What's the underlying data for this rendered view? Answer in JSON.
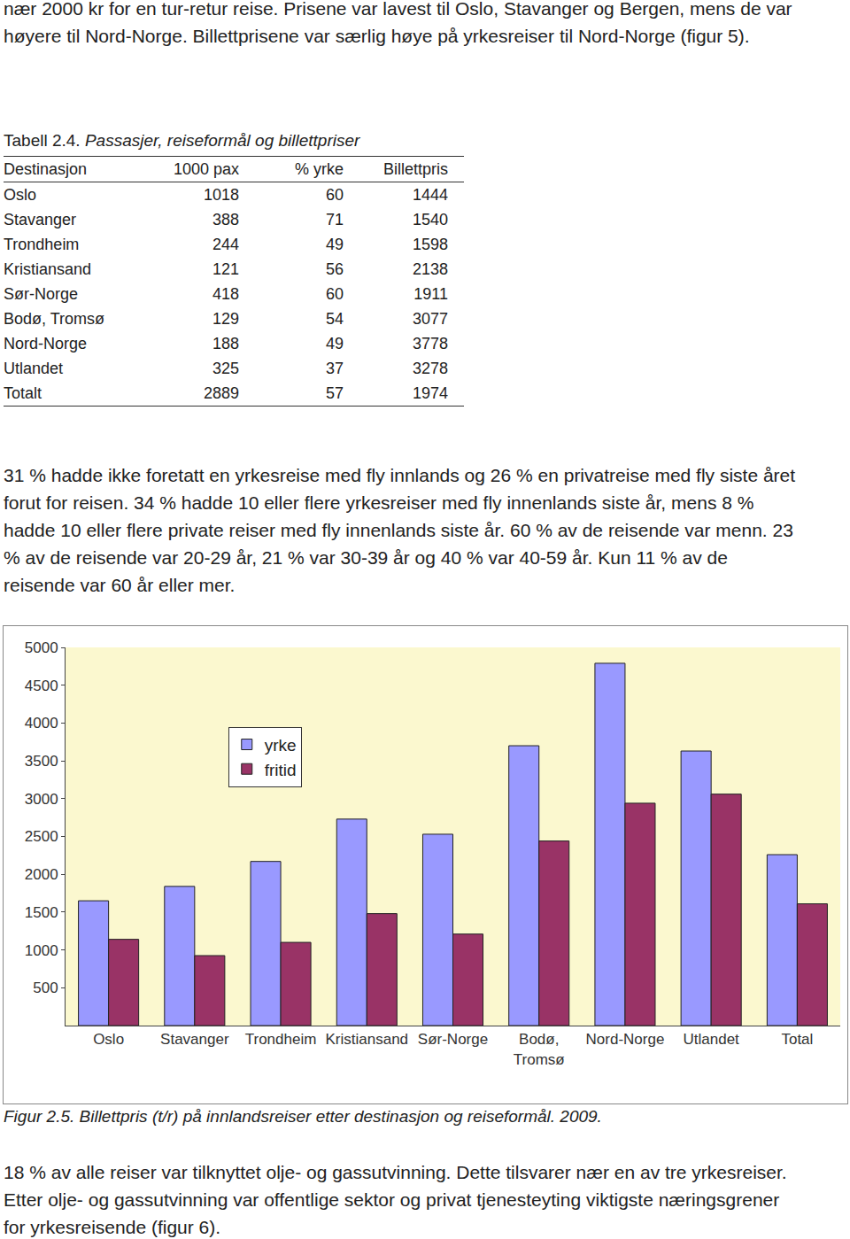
{
  "intro": "nær 2000 kr for en tur-retur reise. Prisene var lavest til Oslo, Stavanger og Bergen, mens de var høyere til Nord-Norge. Billettprisene var særlig høye på yrkesreiser til Nord-Norge (figur 5).",
  "table": {
    "label": "Tabell 2.4.",
    "title": "Passasjer, reiseformål og billettpriser",
    "columns": [
      "Destinasjon",
      "1000 pax",
      "% yrke",
      "Billettpris"
    ],
    "rows": [
      [
        "Oslo",
        1018,
        60,
        1444
      ],
      [
        "Stavanger",
        388,
        71,
        1540
      ],
      [
        "Trondheim",
        244,
        49,
        1598
      ],
      [
        "Kristiansand",
        121,
        56,
        2138
      ],
      [
        "Sør-Norge",
        418,
        60,
        1911
      ],
      [
        "Bodø, Tromsø",
        129,
        54,
        3077
      ],
      [
        "Nord-Norge",
        188,
        49,
        3778
      ],
      [
        "Utlandet",
        325,
        37,
        3278
      ],
      [
        "Totalt",
        2889,
        57,
        1974
      ]
    ]
  },
  "middle": "31 % hadde ikke foretatt en yrkesreise med fly innlands og 26 % en privatreise med fly siste året forut for reisen. 34 % hadde 10 eller flere yrkesreiser med fly innenlands siste år, mens 8 % hadde 10 eller flere private reiser med fly innenlands siste år. 60 % av de reisende var menn. 23 % av de reisende var 20-29 år, 21 % var 30-39 år og 40 % var 40-59 år. Kun 11 % av de reisende var 60 år eller mer.",
  "chart_data": {
    "type": "bar",
    "categories": [
      "Oslo",
      "Stavanger",
      "Trondheim",
      "Kristiansand",
      "Sør-Norge",
      "Bodø,\nTromsø",
      "Nord-Norge",
      "Utlandet",
      "Total"
    ],
    "series": [
      {
        "name": "yrke",
        "color": "#9999ff",
        "values": [
          1650,
          1840,
          2170,
          2730,
          2530,
          3700,
          4790,
          3630,
          2260
        ]
      },
      {
        "name": "fritid",
        "color": "#993366",
        "values": [
          1140,
          925,
          1100,
          1480,
          1210,
          2440,
          2940,
          3060,
          1610
        ]
      }
    ],
    "ylim": [
      0,
      5000
    ],
    "yticks": [
      500,
      1000,
      1500,
      2000,
      2500,
      3000,
      3500,
      4000,
      4500,
      5000
    ],
    "grid": false,
    "legend": "upper left"
  },
  "figure_caption": "Figur 2.5. Billettpris (t/r) på innlandsreiser etter destinasjon og reiseformål. 2009.",
  "outro": "18 % av alle reiser var tilknyttet olje- og gassutvinning. Dette tilsvarer nær en av tre yrkesreiser. Etter olje- og gassutvinning var offentlige sektor og privat tjenesteyting viktigste næringsgrener for yrkesreisende (figur 6)."
}
